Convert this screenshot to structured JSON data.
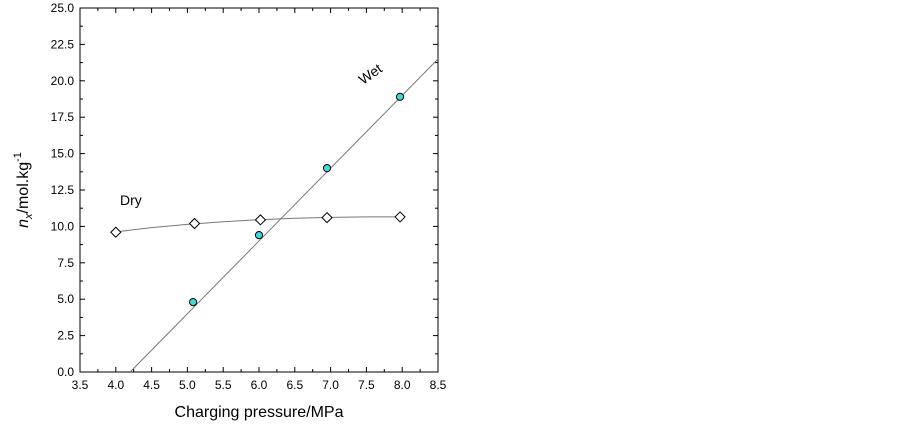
{
  "chart_data": {
    "type": "scatter",
    "xlabel": "Charging pressure/MPa",
    "ylabel": {
      "main": "n",
      "sub": "x",
      "rest": "/mol.kg",
      "sup": "-1"
    },
    "xlim": [
      3.5,
      8.5
    ],
    "ylim": [
      0.0,
      25.0
    ],
    "x_ticks": [
      "3.5",
      "4.0",
      "4.5",
      "5.0",
      "5.5",
      "6.0",
      "6.5",
      "7.0",
      "7.5",
      "8.0",
      "8.5"
    ],
    "y_ticks": [
      "0.0",
      "2.5",
      "5.0",
      "7.5",
      "10.0",
      "12.5",
      "15.0",
      "17.5",
      "20.0",
      "22.5",
      "25.0"
    ],
    "x_tick_values": [
      3.5,
      4.0,
      4.5,
      5.0,
      5.5,
      6.0,
      6.5,
      7.0,
      7.5,
      8.0,
      8.5
    ],
    "y_tick_values": [
      0,
      2.5,
      5,
      7.5,
      10,
      12.5,
      15,
      17.5,
      20,
      22.5,
      25
    ],
    "grid": false,
    "series": [
      {
        "name": "Dry",
        "marker": "diamond",
        "color": "#000000",
        "fill": "#ffffff",
        "x": [
          4.0,
          5.1,
          6.02,
          6.95,
          7.97
        ],
        "y": [
          9.6,
          10.2,
          10.45,
          10.6,
          10.65
        ],
        "fit_curve": {
          "x": [
            4.0,
            4.5,
            5.0,
            5.5,
            6.0,
            6.5,
            7.0,
            7.5,
            7.97
          ],
          "y": [
            9.62,
            9.92,
            10.14,
            10.32,
            10.46,
            10.56,
            10.62,
            10.65,
            10.65
          ]
        }
      },
      {
        "name": "Wet",
        "marker": "circle",
        "color": "#000000",
        "fill": "#3fd9dc",
        "x": [
          5.08,
          6.0,
          6.95,
          7.97
        ],
        "y": [
          4.8,
          9.4,
          14.0,
          18.9
        ],
        "fit_line": {
          "x": [
            4.2,
            8.5
          ],
          "y": [
            0.0,
            21.5
          ]
        }
      }
    ],
    "annotations": [
      {
        "text": "Dry",
        "series": "Dry"
      },
      {
        "text": "Wet",
        "series": "Wet"
      }
    ]
  }
}
